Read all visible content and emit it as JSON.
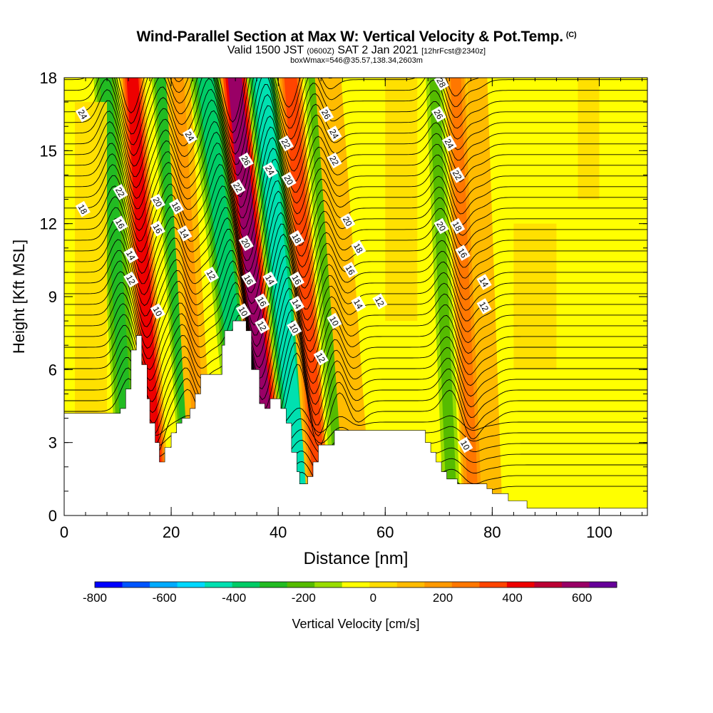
{
  "chart_data": {
    "type": "heatmap",
    "title": {
      "main": "Wind-Parallel Section at Max W: Vertical Velocity & Pot.Temp.",
      "copyright": "(C)",
      "valid_prefix": "Valid 1500 JST",
      "valid_utc": "(0600Z)",
      "valid_date": "SAT 2 Jan 2021",
      "forecast": "[12hrFcst@2340z]",
      "box_info": "boxWmax=546@35.57,138.34,2603m"
    },
    "xlabel": "Distance [nm]",
    "ylabel": "Height [Kft MSL]",
    "xlim": [
      0,
      109
    ],
    "ylim": [
      0,
      18
    ],
    "x_ticks": [
      "0",
      "20",
      "40",
      "60",
      "80",
      "100"
    ],
    "y_ticks": [
      "0",
      "3",
      "6",
      "9",
      "12",
      "15",
      "18"
    ],
    "colorbar": {
      "label": "Vertical Velocity [cm/s]",
      "range": [
        -800,
        700
      ],
      "tick_labels": [
        "-800",
        "-600",
        "-400",
        "-200",
        "0",
        "200",
        "400",
        "600"
      ],
      "colors": [
        "#0000ff",
        "#0055ff",
        "#00aaff",
        "#00d8ff",
        "#00e0b0",
        "#00cc66",
        "#22bb22",
        "#55bb00",
        "#99dd00",
        "#ffff00",
        "#ffdd00",
        "#ffbb00",
        "#ff9900",
        "#ff7700",
        "#ff4400",
        "#ee0000",
        "#bb0033",
        "#990066",
        "#660099"
      ]
    },
    "vertical_velocity_bands": [
      {
        "x_bottom": 12.5,
        "x_top": 7.5,
        "w": -300
      },
      {
        "x_bottom": 17.5,
        "x_top": 12.5,
        "w": 400
      },
      {
        "x_bottom": 24,
        "x_top": 18,
        "w": -250
      },
      {
        "x_bottom": 26,
        "x_top": 21,
        "w": 150
      },
      {
        "x_bottom": 35,
        "x_top": 26,
        "w": -400
      },
      {
        "x_bottom": 39,
        "x_top": 31.5,
        "w": 546
      },
      {
        "x_bottom": 44.5,
        "x_top": 36.5,
        "w": -450
      },
      {
        "x_bottom": 48,
        "x_top": 42,
        "w": 350
      },
      {
        "x_bottom": 52,
        "x_top": 46.5,
        "w": -200
      },
      {
        "x_bottom": 55,
        "x_top": 49,
        "w": 120
      },
      {
        "x_bottom": 72.5,
        "x_top": 69,
        "w": -200
      },
      {
        "x_bottom": 76.5,
        "x_top": 73,
        "w": 250
      },
      {
        "x_bottom": 80,
        "x_top": 77,
        "w": 80
      }
    ],
    "terrain": [
      [
        0,
        4.2
      ],
      [
        10.5,
        4.2
      ],
      [
        10.5,
        4.4
      ],
      [
        11.5,
        4.4
      ],
      [
        11.5,
        5.2
      ],
      [
        12.5,
        5.2
      ],
      [
        12.5,
        6.8
      ],
      [
        13.5,
        6.8
      ],
      [
        13.5,
        7.4
      ],
      [
        14.5,
        7.4
      ],
      [
        14.5,
        6.2
      ],
      [
        15.5,
        6.2
      ],
      [
        15.5,
        4.8
      ],
      [
        16,
        4.8
      ],
      [
        16,
        3.8
      ],
      [
        17,
        3.8
      ],
      [
        17,
        3.0
      ],
      [
        17.8,
        3.0
      ],
      [
        17.8,
        2.2
      ],
      [
        18.8,
        2.2
      ],
      [
        18.8,
        2.8
      ],
      [
        20,
        2.8
      ],
      [
        20,
        3.4
      ],
      [
        21,
        3.4
      ],
      [
        21,
        3.8
      ],
      [
        22,
        3.8
      ],
      [
        22,
        4.0
      ],
      [
        23.5,
        4.0
      ],
      [
        23.5,
        4.4
      ],
      [
        24.5,
        4.4
      ],
      [
        24.5,
        5.0
      ],
      [
        25.5,
        5.0
      ],
      [
        25.5,
        5.8
      ],
      [
        29.5,
        5.8
      ],
      [
        29.5,
        7.0
      ],
      [
        30,
        7.0
      ],
      [
        30,
        7.6
      ],
      [
        31.5,
        7.6
      ],
      [
        31.5,
        8.0
      ],
      [
        34,
        8.0
      ],
      [
        34,
        7.6
      ],
      [
        35,
        7.6
      ],
      [
        35,
        6.0
      ],
      [
        36.5,
        6.0
      ],
      [
        36.5,
        4.6
      ],
      [
        37.5,
        4.6
      ],
      [
        37.5,
        4.4
      ],
      [
        38.5,
        4.4
      ],
      [
        38.5,
        4.8
      ],
      [
        40.5,
        4.8
      ],
      [
        40.5,
        4.4
      ],
      [
        41.5,
        4.4
      ],
      [
        41.5,
        3.8
      ],
      [
        42.5,
        3.8
      ],
      [
        42.5,
        2.6
      ],
      [
        43.5,
        2.6
      ],
      [
        43.5,
        1.8
      ],
      [
        44,
        1.8
      ],
      [
        44,
        1.3
      ],
      [
        45.5,
        1.3
      ],
      [
        45.5,
        1.6
      ],
      [
        46.5,
        1.6
      ],
      [
        46.5,
        2.2
      ],
      [
        47.5,
        2.2
      ],
      [
        47.5,
        2.9
      ],
      [
        50.5,
        2.9
      ],
      [
        50.5,
        3.5
      ],
      [
        67.5,
        3.5
      ],
      [
        67.5,
        3.0
      ],
      [
        68.5,
        3.0
      ],
      [
        68.5,
        2.6
      ],
      [
        69.5,
        2.6
      ],
      [
        69.5,
        2.2
      ],
      [
        70.5,
        2.2
      ],
      [
        70.5,
        1.8
      ],
      [
        71.5,
        1.8
      ],
      [
        71.5,
        1.5
      ],
      [
        73.5,
        1.5
      ],
      [
        73.5,
        1.3
      ],
      [
        79,
        1.3
      ],
      [
        79,
        1.1
      ],
      [
        80,
        1.1
      ],
      [
        80,
        0.9
      ],
      [
        83,
        0.9
      ],
      [
        83,
        0.6
      ],
      [
        86.5,
        0.6
      ],
      [
        86.5,
        0.3
      ],
      [
        109,
        0.3
      ]
    ],
    "theta_levels": [
      "10",
      "12",
      "14",
      "16",
      "18",
      "20",
      "22",
      "24",
      "26",
      "28"
    ],
    "contour_labels": [
      {
        "x": 3.5,
        "y": 16.5,
        "text": "24"
      },
      {
        "x": 3.5,
        "y": 12.6,
        "text": "18"
      },
      {
        "x": 23.5,
        "y": 15.6,
        "text": "24"
      },
      {
        "x": 10.5,
        "y": 13.3,
        "text": "22"
      },
      {
        "x": 17.5,
        "y": 12.9,
        "text": "20"
      },
      {
        "x": 21,
        "y": 12.7,
        "text": "18"
      },
      {
        "x": 10.5,
        "y": 12.0,
        "text": "16"
      },
      {
        "x": 17.5,
        "y": 11.8,
        "text": "16"
      },
      {
        "x": 22.5,
        "y": 11.6,
        "text": "14"
      },
      {
        "x": 12.5,
        "y": 10.7,
        "text": "14"
      },
      {
        "x": 12.5,
        "y": 9.7,
        "text": "12"
      },
      {
        "x": 27.5,
        "y": 9.9,
        "text": "12"
      },
      {
        "x": 17.5,
        "y": 8.4,
        "text": "10"
      },
      {
        "x": 34,
        "y": 14.6,
        "text": "26"
      },
      {
        "x": 32.5,
        "y": 13.5,
        "text": "22"
      },
      {
        "x": 34,
        "y": 11.2,
        "text": "20"
      },
      {
        "x": 34.5,
        "y": 9.7,
        "text": "16"
      },
      {
        "x": 33.5,
        "y": 8.4,
        "text": "10"
      },
      {
        "x": 38.5,
        "y": 14.2,
        "text": "24"
      },
      {
        "x": 41.5,
        "y": 15.3,
        "text": "22"
      },
      {
        "x": 42,
        "y": 13.8,
        "text": "20"
      },
      {
        "x": 43.5,
        "y": 11.4,
        "text": "18"
      },
      {
        "x": 38.5,
        "y": 9.7,
        "text": "14"
      },
      {
        "x": 37,
        "y": 8.8,
        "text": "16"
      },
      {
        "x": 37,
        "y": 7.8,
        "text": "12"
      },
      {
        "x": 43.5,
        "y": 9.7,
        "text": "16"
      },
      {
        "x": 43.5,
        "y": 8.7,
        "text": "14"
      },
      {
        "x": 43,
        "y": 7.7,
        "text": "10"
      },
      {
        "x": 49,
        "y": 16.5,
        "text": "26"
      },
      {
        "x": 50.5,
        "y": 15.7,
        "text": "24"
      },
      {
        "x": 50.5,
        "y": 14.6,
        "text": "22"
      },
      {
        "x": 53,
        "y": 12.1,
        "text": "20"
      },
      {
        "x": 55,
        "y": 11.0,
        "text": "18"
      },
      {
        "x": 53.5,
        "y": 10.1,
        "text": "16"
      },
      {
        "x": 55,
        "y": 8.7,
        "text": "14"
      },
      {
        "x": 59,
        "y": 8.8,
        "text": "12"
      },
      {
        "x": 50.5,
        "y": 8.0,
        "text": "10"
      },
      {
        "x": 48,
        "y": 6.5,
        "text": "12"
      },
      {
        "x": 70.5,
        "y": 17.8,
        "text": "28"
      },
      {
        "x": 70,
        "y": 16.5,
        "text": "26"
      },
      {
        "x": 72,
        "y": 15.3,
        "text": "24"
      },
      {
        "x": 73.5,
        "y": 14.0,
        "text": "22"
      },
      {
        "x": 70.5,
        "y": 11.9,
        "text": "20"
      },
      {
        "x": 73.5,
        "y": 11.9,
        "text": "18"
      },
      {
        "x": 74.5,
        "y": 10.8,
        "text": "16"
      },
      {
        "x": 78.5,
        "y": 9.6,
        "text": "14"
      },
      {
        "x": 78.5,
        "y": 8.6,
        "text": "12"
      },
      {
        "x": 75,
        "y": 2.9,
        "text": "10"
      }
    ]
  }
}
